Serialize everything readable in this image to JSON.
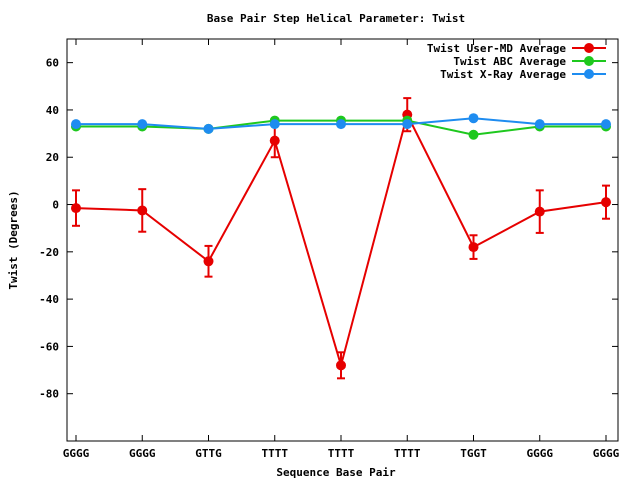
{
  "chart_data": {
    "type": "line",
    "title": "Base Pair Step Helical Parameter: Twist",
    "xlabel": "Sequence Base Pair",
    "ylabel": "Twist (Degrees)",
    "categories": [
      "GGGG",
      "GGGG",
      "GTTG",
      "TTTT",
      "TTTT",
      "TTTT",
      "TGGT",
      "GGGG",
      "GGGG"
    ],
    "ylim": [
      -100,
      70
    ],
    "yticks": [
      -80,
      -60,
      -40,
      -20,
      0,
      20,
      40,
      60
    ],
    "legend_position": "top-right",
    "grid": false,
    "series": [
      {
        "name": "Twist User-MD Average",
        "color": "#e60000",
        "values": [
          -1.5,
          -2.5,
          -24,
          27,
          -68,
          38,
          -18,
          -3,
          1
        ],
        "error": [
          7.5,
          9,
          6.5,
          7,
          5.5,
          7,
          5,
          9,
          7
        ]
      },
      {
        "name": "Twist ABC Average",
        "color": "#1ec81e",
        "values": [
          33,
          33,
          32,
          35.5,
          35.5,
          35.5,
          29.5,
          33,
          33
        ]
      },
      {
        "name": "Twist X-Ray Average",
        "color": "#1e8cf0",
        "values": [
          34,
          34,
          32,
          34,
          34,
          34,
          36.5,
          34,
          34
        ]
      }
    ]
  }
}
